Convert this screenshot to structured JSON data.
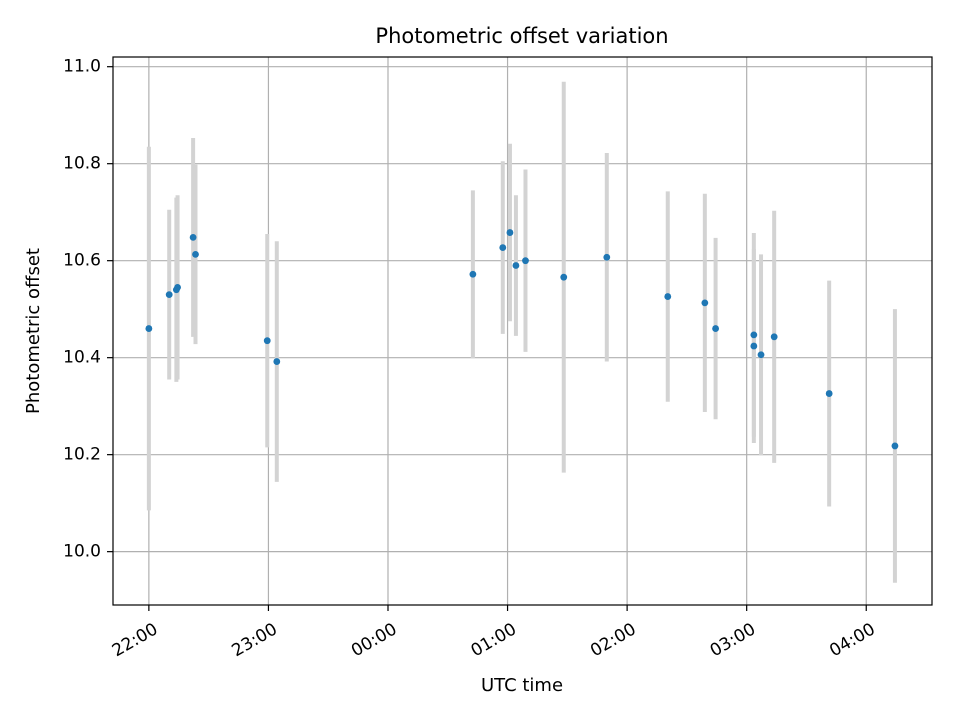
{
  "chart_data": {
    "type": "scatter",
    "title": "Photometric offset variation",
    "xlabel": "UTC time",
    "ylabel": "Photometric offset",
    "x_tick_labels": [
      "22:00",
      "23:00",
      "00:00",
      "01:00",
      "02:00",
      "03:00",
      "04:00"
    ],
    "y_tick_labels": [
      "10.0",
      "10.2",
      "10.4",
      "10.6",
      "10.8",
      "11.0"
    ],
    "x_ticks_hours": [
      22,
      23,
      24,
      25,
      26,
      27,
      28
    ],
    "y_ticks": [
      10.0,
      10.2,
      10.4,
      10.6,
      10.8,
      11.0
    ],
    "xlim_hours": [
      21.7,
      28.55
    ],
    "ylim": [
      9.89,
      11.02
    ],
    "grid": true,
    "x_axis_note": "times after midnight continue past 24h (00:00 = 24, 04:00 = 28)",
    "marker_color": "#1f77b4",
    "errorbar_color": "#d3d3d3",
    "points": [
      {
        "t": 22.0,
        "y": 10.46,
        "err": 0.375
      },
      {
        "t": 22.17,
        "y": 10.53,
        "err": 0.175
      },
      {
        "t": 22.23,
        "y": 10.54,
        "err": 0.19
      },
      {
        "t": 22.24,
        "y": 10.545,
        "err": 0.19
      },
      {
        "t": 22.37,
        "y": 10.648,
        "err": 0.205
      },
      {
        "t": 22.39,
        "y": 10.613,
        "err": 0.185
      },
      {
        "t": 22.99,
        "y": 10.435,
        "err": 0.22
      },
      {
        "t": 23.07,
        "y": 10.392,
        "err": 0.248
      },
      {
        "t": 24.71,
        "y": 10.572,
        "err": 0.173
      },
      {
        "t": 24.96,
        "y": 10.627,
        "err": 0.178
      },
      {
        "t": 25.02,
        "y": 10.658,
        "err": 0.183
      },
      {
        "t": 25.07,
        "y": 10.59,
        "err": 0.145
      },
      {
        "t": 25.15,
        "y": 10.6,
        "err": 0.188
      },
      {
        "t": 25.47,
        "y": 10.566,
        "err": 0.403
      },
      {
        "t": 25.83,
        "y": 10.607,
        "err": 0.215
      },
      {
        "t": 26.34,
        "y": 10.526,
        "err": 0.217
      },
      {
        "t": 26.65,
        "y": 10.513,
        "err": 0.225
      },
      {
        "t": 26.74,
        "y": 10.46,
        "err": 0.187
      },
      {
        "t": 27.06,
        "y": 10.447,
        "err": 0.21
      },
      {
        "t": 27.06,
        "y": 10.424,
        "err": 0.2
      },
      {
        "t": 27.12,
        "y": 10.406,
        "err": 0.207
      },
      {
        "t": 27.23,
        "y": 10.443,
        "err": 0.26
      },
      {
        "t": 27.69,
        "y": 10.326,
        "err": 0.233
      },
      {
        "t": 28.24,
        "y": 10.218,
        "err": 0.282
      }
    ]
  }
}
